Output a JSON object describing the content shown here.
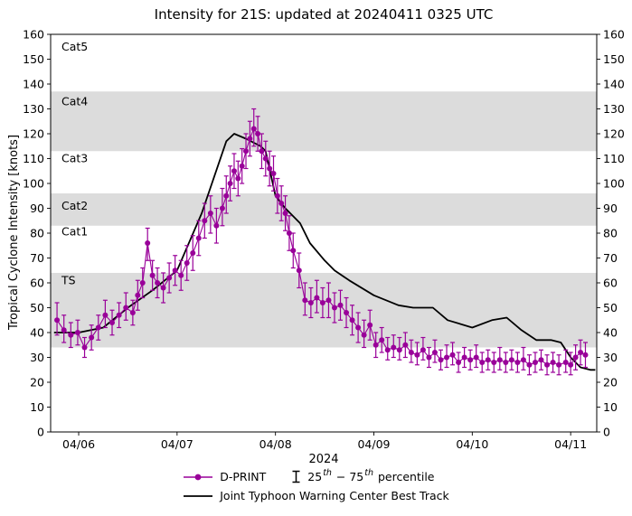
{
  "chart_data": {
    "type": "line",
    "title": "Intensity for 21S: updated at 20240411 0325 UTC",
    "ylabel": "Tropical Cyclone Intensity [knots]",
    "xlabel": "2024",
    "ylim": [
      0,
      160
    ],
    "ytick_step": 10,
    "xlim_days": [
      -0.285,
      5.265
    ],
    "x_encoding": "days relative to the 04/06 tick",
    "x_ticks": [
      {
        "t": 0,
        "label": "04/06"
      },
      {
        "t": 1,
        "label": "04/07"
      },
      {
        "t": 2,
        "label": "04/08"
      },
      {
        "t": 3,
        "label": "04/09"
      },
      {
        "t": 4,
        "label": "04/10"
      },
      {
        "t": 5,
        "label": "04/11"
      }
    ],
    "bands": [
      {
        "label": "TS",
        "lo": 34,
        "hi": 64,
        "shaded": true,
        "label_y": 61
      },
      {
        "label": "Cat1",
        "lo": 64,
        "hi": 83,
        "shaded": false,
        "label_y": 80.5
      },
      {
        "label": "Cat2",
        "lo": 83,
        "hi": 96,
        "shaded": true,
        "label_y": 91
      },
      {
        "label": "Cat3",
        "lo": 96,
        "hi": 113,
        "shaded": false,
        "label_y": 110
      },
      {
        "label": "Cat4",
        "lo": 113,
        "hi": 137,
        "shaded": true,
        "label_y": 133
      },
      {
        "label": "Cat5",
        "lo": 137,
        "hi": 160,
        "shaded": false,
        "label_y": 155
      }
    ],
    "colors": {
      "dprint": "#990099",
      "jtwc": "#000000",
      "band": "#dcdcdc"
    },
    "series": {
      "dprint": {
        "name": "D-PRINT",
        "points_format": "[t_days, value_kt, pct25_kt, pct75_kt]",
        "points": [
          [
            -0.22,
            45,
            39,
            52
          ],
          [
            -0.15,
            41,
            36,
            47
          ],
          [
            -0.08,
            39,
            34,
            44
          ],
          [
            -0.01,
            40,
            35,
            45
          ],
          [
            0.06,
            34,
            30,
            38
          ],
          [
            0.13,
            38,
            33,
            43
          ],
          [
            0.2,
            42,
            37,
            47
          ],
          [
            0.27,
            47,
            42,
            53
          ],
          [
            0.34,
            44,
            39,
            49
          ],
          [
            0.41,
            47,
            42,
            52
          ],
          [
            0.48,
            50,
            45,
            56
          ],
          [
            0.55,
            48,
            43,
            53
          ],
          [
            0.6,
            55,
            49,
            61
          ],
          [
            0.65,
            60,
            54,
            66
          ],
          [
            0.7,
            76,
            69,
            82
          ],
          [
            0.75,
            63,
            57,
            69
          ],
          [
            0.8,
            60,
            54,
            66
          ],
          [
            0.86,
            58,
            52,
            64
          ],
          [
            0.92,
            62,
            56,
            68
          ],
          [
            0.98,
            65,
            59,
            71
          ],
          [
            1.04,
            63,
            57,
            69
          ],
          [
            1.1,
            68,
            61,
            75
          ],
          [
            1.16,
            72,
            65,
            79
          ],
          [
            1.22,
            78,
            71,
            85
          ],
          [
            1.28,
            85,
            78,
            92
          ],
          [
            1.34,
            88,
            80,
            95
          ],
          [
            1.4,
            83,
            76,
            90
          ],
          [
            1.46,
            90,
            83,
            98
          ],
          [
            1.5,
            95,
            88,
            103
          ],
          [
            1.54,
            100,
            93,
            107
          ],
          [
            1.58,
            105,
            98,
            112
          ],
          [
            1.62,
            102,
            95,
            109
          ],
          [
            1.66,
            107,
            100,
            114
          ],
          [
            1.7,
            113,
            106,
            120
          ],
          [
            1.74,
            118,
            111,
            125
          ],
          [
            1.78,
            122,
            115,
            130
          ],
          [
            1.82,
            120,
            113,
            127
          ],
          [
            1.86,
            113,
            106,
            120
          ],
          [
            1.9,
            110,
            103,
            117
          ],
          [
            1.94,
            106,
            99,
            113
          ],
          [
            1.98,
            104,
            97,
            111
          ],
          [
            2.02,
            95,
            88,
            102
          ],
          [
            2.06,
            92,
            85,
            99
          ],
          [
            2.1,
            88,
            81,
            95
          ],
          [
            2.14,
            80,
            73,
            87
          ],
          [
            2.18,
            73,
            66,
            80
          ],
          [
            2.24,
            65,
            58,
            72
          ],
          [
            2.3,
            53,
            47,
            60
          ],
          [
            2.36,
            52,
            46,
            58
          ],
          [
            2.42,
            54,
            48,
            61
          ],
          [
            2.48,
            52,
            46,
            58
          ],
          [
            2.54,
            53,
            46,
            60
          ],
          [
            2.6,
            50,
            44,
            56
          ],
          [
            2.66,
            51,
            45,
            57
          ],
          [
            2.72,
            48,
            42,
            54
          ],
          [
            2.78,
            45,
            39,
            51
          ],
          [
            2.84,
            42,
            36,
            48
          ],
          [
            2.9,
            39,
            34,
            45
          ],
          [
            2.96,
            43,
            37,
            49
          ],
          [
            3.02,
            35,
            30,
            40
          ],
          [
            3.08,
            37,
            32,
            42
          ],
          [
            3.14,
            33,
            29,
            38
          ],
          [
            3.2,
            34,
            30,
            39
          ],
          [
            3.26,
            33,
            29,
            38
          ],
          [
            3.32,
            35,
            30,
            40
          ],
          [
            3.38,
            32,
            28,
            37
          ],
          [
            3.44,
            31,
            27,
            36
          ],
          [
            3.5,
            33,
            29,
            38
          ],
          [
            3.56,
            30,
            26,
            34
          ],
          [
            3.62,
            32,
            28,
            37
          ],
          [
            3.68,
            29,
            25,
            33
          ],
          [
            3.74,
            30,
            26,
            35
          ],
          [
            3.8,
            31,
            27,
            36
          ],
          [
            3.86,
            28,
            24,
            32
          ],
          [
            3.92,
            30,
            26,
            34
          ],
          [
            3.98,
            29,
            25,
            33
          ],
          [
            4.04,
            30,
            26,
            35
          ],
          [
            4.1,
            28,
            24,
            32
          ],
          [
            4.16,
            29,
            25,
            33
          ],
          [
            4.22,
            28,
            24,
            32
          ],
          [
            4.28,
            29,
            25,
            34
          ],
          [
            4.34,
            28,
            24,
            32
          ],
          [
            4.4,
            29,
            25,
            33
          ],
          [
            4.46,
            28,
            24,
            32
          ],
          [
            4.52,
            29,
            25,
            34
          ],
          [
            4.58,
            27,
            23,
            31
          ],
          [
            4.64,
            28,
            24,
            32
          ],
          [
            4.7,
            29,
            25,
            33
          ],
          [
            4.76,
            27,
            23,
            31
          ],
          [
            4.82,
            28,
            24,
            32
          ],
          [
            4.88,
            27,
            23,
            31
          ],
          [
            4.95,
            28,
            24,
            33
          ],
          [
            5.0,
            27,
            23,
            32
          ],
          [
            5.05,
            30,
            25,
            35
          ],
          [
            5.1,
            32,
            27,
            37
          ],
          [
            5.15,
            31,
            26,
            36
          ]
        ]
      },
      "jtwc": {
        "name": "Joint Typhoon Warning Center Best Track",
        "points_format": "[t_days, value_kt]",
        "points": [
          [
            -0.25,
            40
          ],
          [
            0,
            40
          ],
          [
            0.25,
            42
          ],
          [
            0.5,
            50
          ],
          [
            0.75,
            57
          ],
          [
            1.0,
            65
          ],
          [
            1.25,
            88
          ],
          [
            1.5,
            117
          ],
          [
            1.58,
            120
          ],
          [
            1.7,
            118
          ],
          [
            1.85,
            115
          ],
          [
            1.9,
            113
          ],
          [
            2.0,
            95
          ],
          [
            2.1,
            90
          ],
          [
            2.25,
            84
          ],
          [
            2.35,
            76
          ],
          [
            2.5,
            69
          ],
          [
            2.6,
            65
          ],
          [
            2.75,
            61
          ],
          [
            3.0,
            55
          ],
          [
            3.25,
            51
          ],
          [
            3.4,
            50
          ],
          [
            3.6,
            50
          ],
          [
            3.75,
            45
          ],
          [
            4.0,
            42
          ],
          [
            4.2,
            45
          ],
          [
            4.35,
            46
          ],
          [
            4.5,
            41
          ],
          [
            4.65,
            37
          ],
          [
            4.8,
            37
          ],
          [
            4.9,
            36
          ],
          [
            5.0,
            30
          ],
          [
            5.1,
            26
          ],
          [
            5.2,
            25
          ],
          [
            5.25,
            25
          ]
        ]
      }
    },
    "legend": {
      "dprint": "D-PRINT",
      "percentile": {
        "a": "25",
        "asup": "th",
        "b": " − 75",
        "bsup": "th",
        "c": " percentile"
      },
      "jtwc": "Joint Typhoon Warning Center Best Track"
    }
  }
}
